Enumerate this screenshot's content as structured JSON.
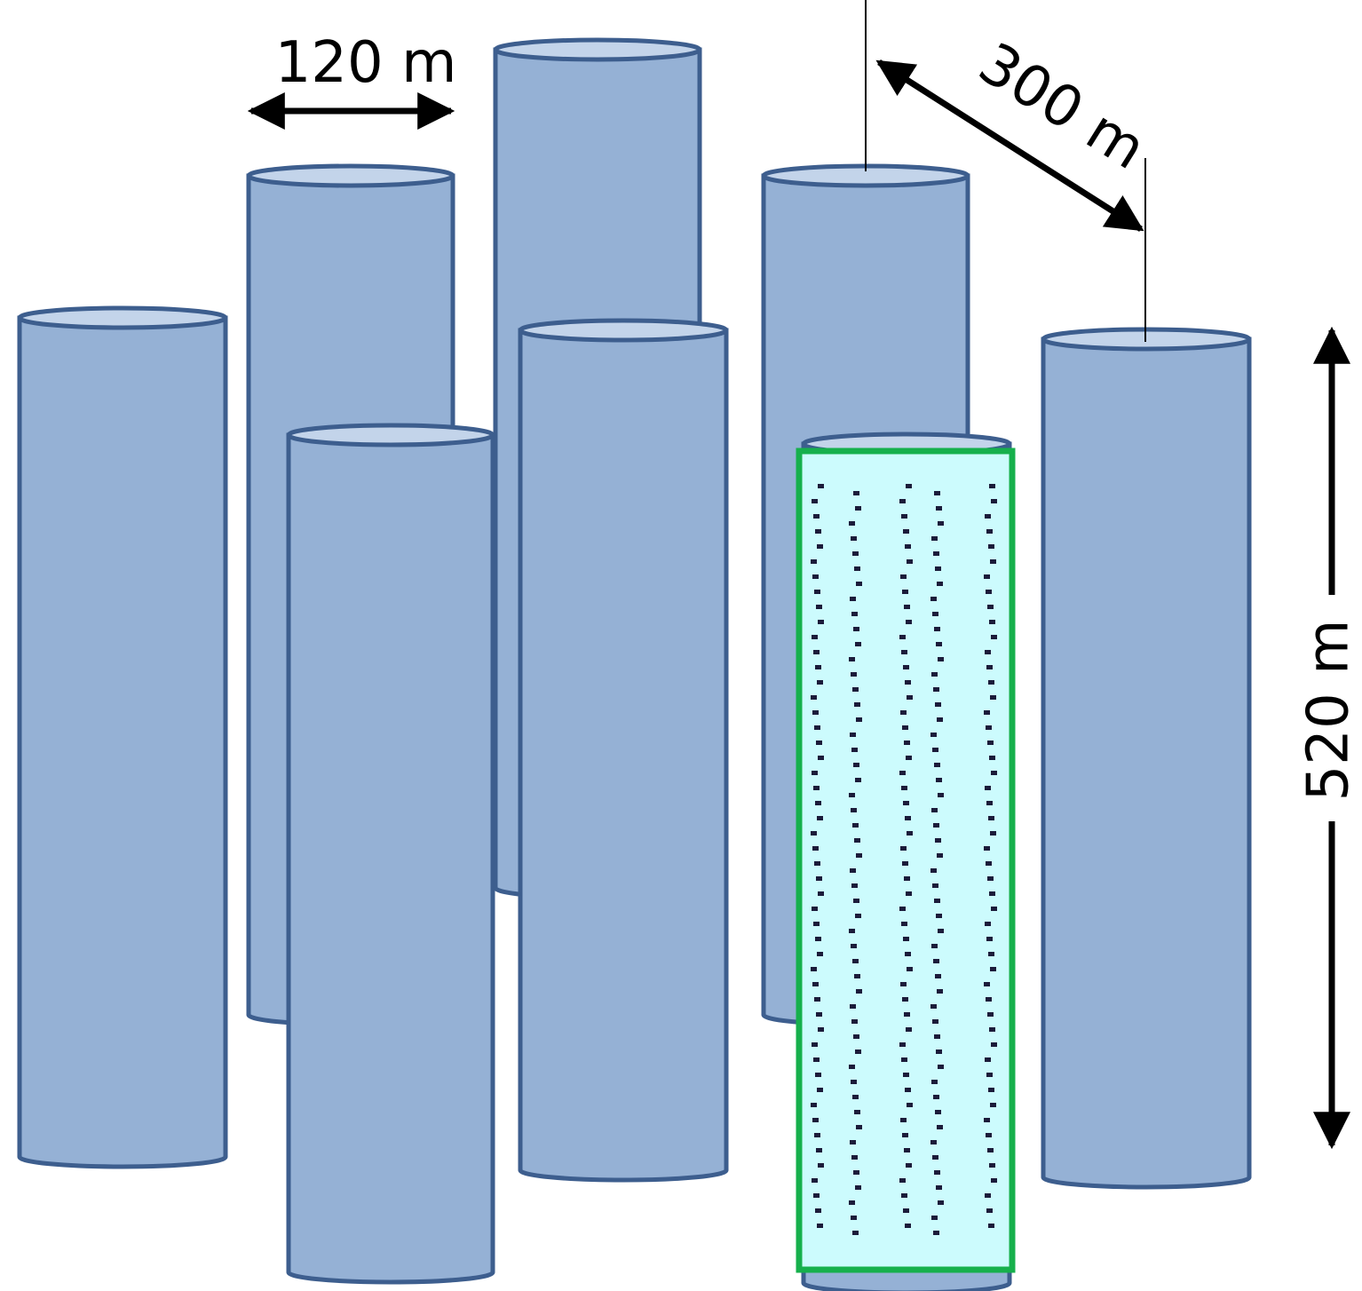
{
  "diagram": {
    "labels": {
      "width": "120 m",
      "spacing": "300 m",
      "height": "520 m"
    },
    "colors": {
      "cylinder_fill": "#95b1d5",
      "cylinder_top": "#c3d4ea",
      "cylinder_stroke": "#3d5e8e",
      "highlight_fill": "#ccfbfd",
      "highlight_border": "#16b04c",
      "dot_color": "#1b1b3a",
      "arrow_color": "#000000"
    },
    "cylinders": [
      {
        "id": "back-left-cylinder",
        "highlighted": false
      },
      {
        "id": "back-center-cylinder",
        "highlighted": false
      },
      {
        "id": "back-right-cylinder",
        "highlighted": false
      },
      {
        "id": "front-left-cylinder",
        "highlighted": false
      },
      {
        "id": "middle-left-cylinder",
        "highlighted": false
      },
      {
        "id": "middle-center-cylinder",
        "highlighted": false
      },
      {
        "id": "highlighted-cylinder",
        "highlighted": true
      },
      {
        "id": "right-cylinder",
        "highlighted": false
      }
    ]
  }
}
